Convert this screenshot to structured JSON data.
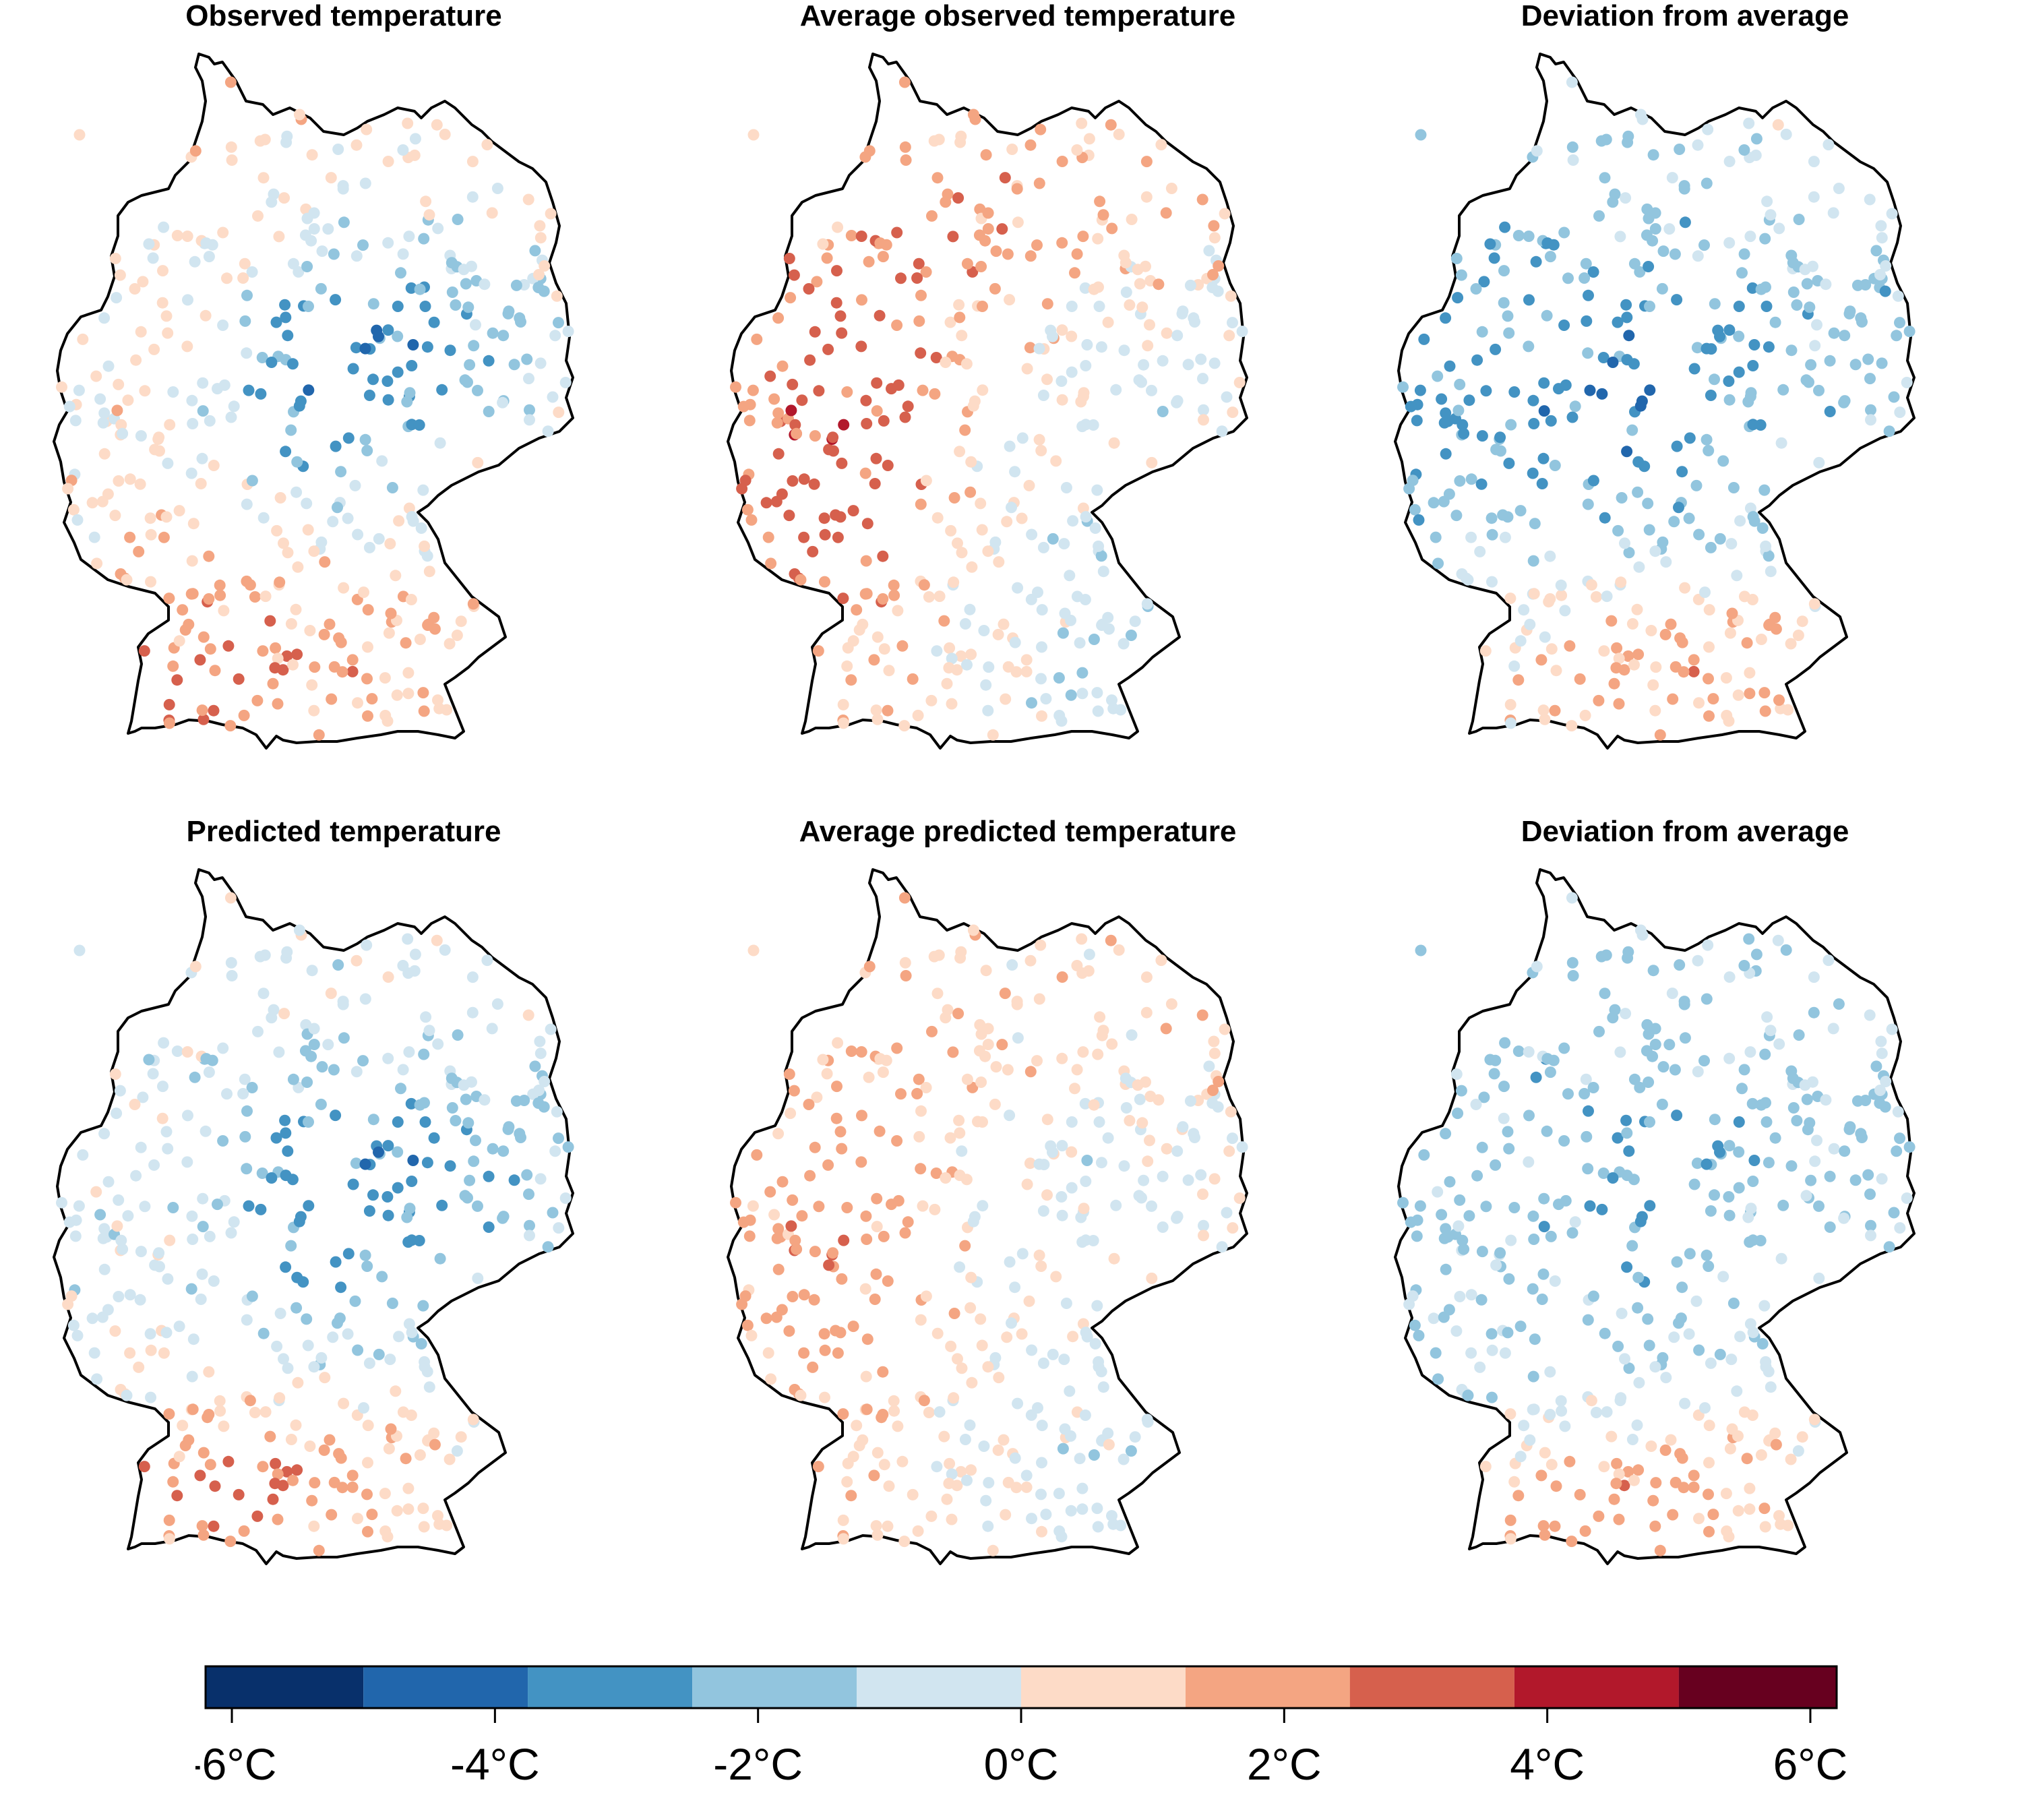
{
  "panels": [
    {
      "id": "obs",
      "title": "Observed temperature",
      "pattern": "obs",
      "intensity": 1.0
    },
    {
      "id": "avg_obs",
      "title": "Average observed temperature",
      "pattern": "avg_obs",
      "intensity": 1.0
    },
    {
      "id": "dev_obs",
      "title": "Deviation from average",
      "pattern": "dev_obs",
      "intensity": 1.0
    },
    {
      "id": "pred",
      "title": "Predicted temperature",
      "pattern": "pred",
      "intensity": 1.0
    },
    {
      "id": "avg_pred",
      "title": "Average predicted temperature",
      "pattern": "avg_pred",
      "intensity": 1.0
    },
    {
      "id": "dev_pred",
      "title": "Deviation from average",
      "pattern": "dev_pred",
      "intensity": 1.0
    }
  ],
  "colorbar": {
    "min": -6.2,
    "max": 6.2,
    "bins": [
      {
        "from": -6.2,
        "to": -5.0,
        "color": "#08306b"
      },
      {
        "from": -5.0,
        "to": -3.75,
        "color": "#2166ac"
      },
      {
        "from": -3.75,
        "to": -2.5,
        "color": "#4393c3"
      },
      {
        "from": -2.5,
        "to": -1.25,
        "color": "#92c5de"
      },
      {
        "from": -1.25,
        "to": 0.0,
        "color": "#d1e5f0"
      },
      {
        "from": 0.0,
        "to": 1.25,
        "color": "#fddbc7"
      },
      {
        "from": 1.25,
        "to": 2.5,
        "color": "#f4a582"
      },
      {
        "from": 2.5,
        "to": 3.75,
        "color": "#d6604d"
      },
      {
        "from": 3.75,
        "to": 5.0,
        "color": "#b2182b"
      },
      {
        "from": 5.0,
        "to": 6.2,
        "color": "#67001f"
      }
    ],
    "ticks": [
      {
        "value": -6,
        "label": "-6°C"
      },
      {
        "value": -4,
        "label": "-4°C"
      },
      {
        "value": -2,
        "label": "-2°C"
      },
      {
        "value": 0,
        "label": "0°C"
      },
      {
        "value": 2,
        "label": "2°C"
      },
      {
        "value": 4,
        "label": "4°C"
      },
      {
        "value": 6,
        "label": "6°C"
      }
    ]
  },
  "border_color": "#000000"
}
